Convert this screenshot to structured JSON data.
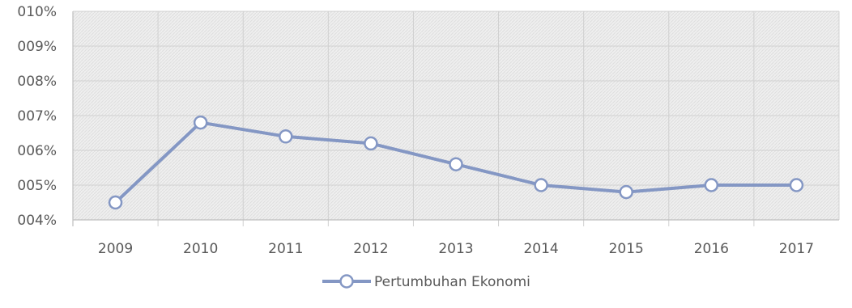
{
  "chart_data": {
    "type": "line",
    "title": "",
    "xlabel": "",
    "ylabel": "",
    "categories": [
      "2009",
      "2010",
      "2011",
      "2012",
      "2013",
      "2014",
      "2015",
      "2016",
      "2017"
    ],
    "series": [
      {
        "name": "Pertumbuhan Ekonomi",
        "values": [
          4.5,
          6.8,
          6.4,
          6.2,
          5.6,
          5.0,
          4.8,
          5.0,
          5.0
        ],
        "color": "#8497c4"
      }
    ],
    "ylim": [
      4,
      10
    ],
    "y_ticks": [
      "004%",
      "005%",
      "006%",
      "007%",
      "008%",
      "009%",
      "010%"
    ],
    "grid": true,
    "legend": "bottom-center",
    "plot_background": "#ececec",
    "grid_color": "#d0d0d0"
  }
}
